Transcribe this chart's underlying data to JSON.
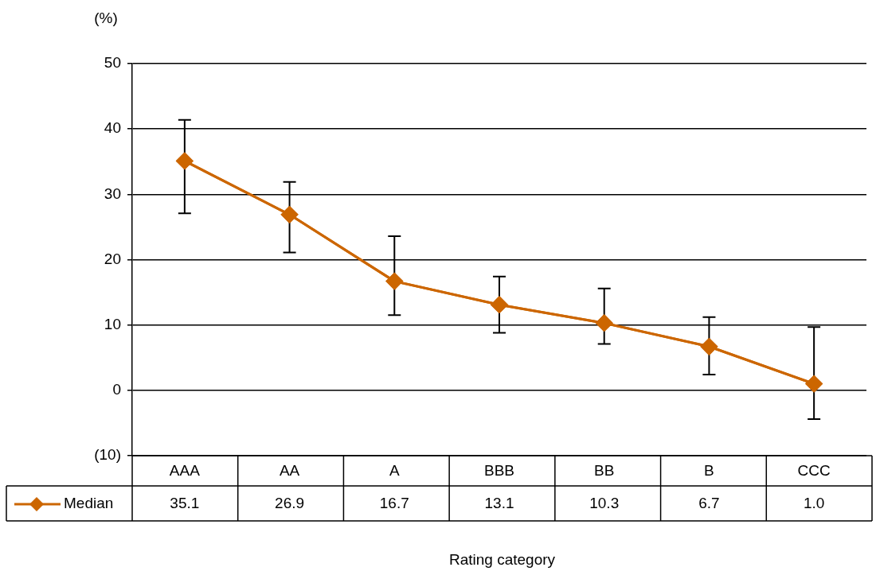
{
  "chart_data": {
    "type": "line",
    "ylabel": "(%)",
    "xlabel": "Rating category",
    "categories": [
      "AAA",
      "AA",
      "A",
      "BBB",
      "BB",
      "B",
      "CCC"
    ],
    "series": [
      {
        "name": "Median",
        "color": "#cc6600",
        "values": [
          35.1,
          26.9,
          16.7,
          13.1,
          10.3,
          6.7,
          1.0
        ],
        "value_labels": [
          "35.1",
          "26.9",
          "16.7",
          "13.1",
          "10.3",
          "6.7",
          "1.0"
        ],
        "errors": [
          [
            27.1,
            41.4
          ],
          [
            21.1,
            31.9
          ],
          [
            11.5,
            23.6
          ],
          [
            8.8,
            17.4
          ],
          [
            7.1,
            15.6
          ],
          [
            2.4,
            11.2
          ],
          [
            -4.4,
            9.7
          ]
        ]
      }
    ],
    "ylim": [
      -10,
      50
    ],
    "yticks": [
      {
        "value": -10,
        "label": "(10)"
      },
      0,
      10,
      20,
      30,
      40,
      50
    ],
    "grid": "y",
    "legend": "bottom",
    "marker": "diamond",
    "line_style": "solid"
  }
}
